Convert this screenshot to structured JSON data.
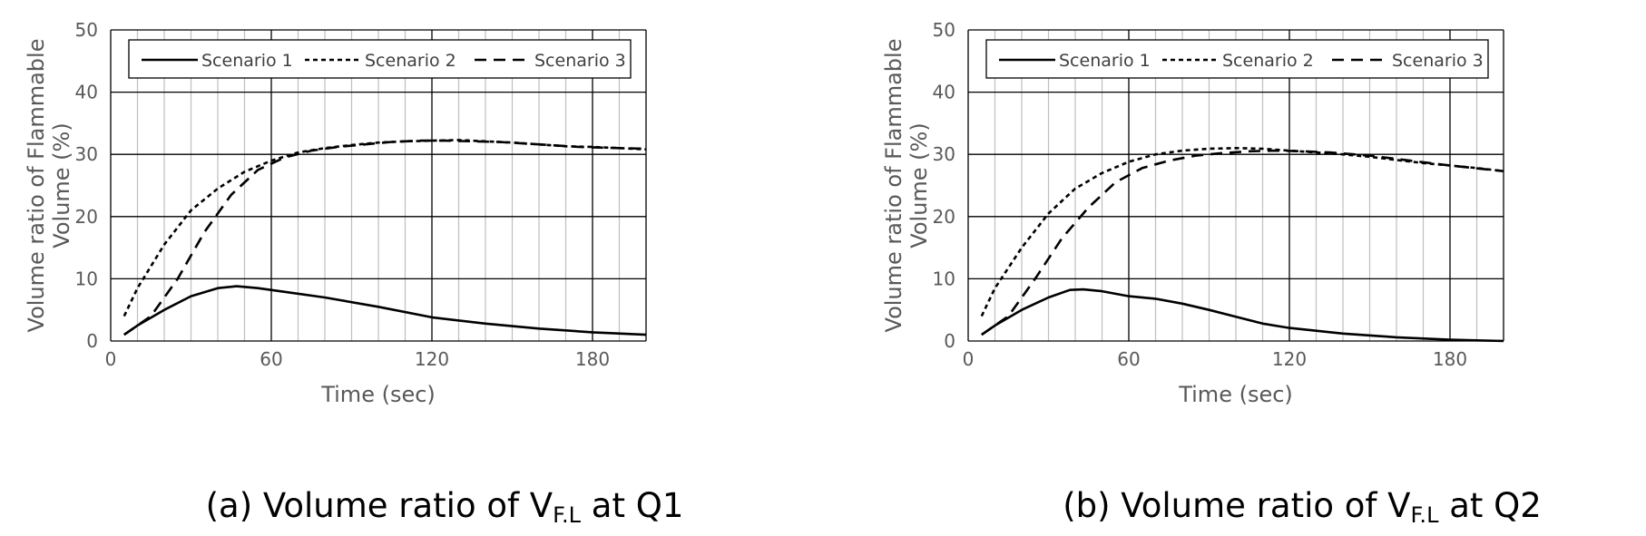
{
  "chart_data": [
    {
      "type": "line",
      "caption": {
        "prefix": "(a) Volume ratio of V",
        "sub": "F.L",
        "suffix": " at Q1"
      },
      "xlabel": "Time (sec)",
      "ylabel_line1": "Volume ratio of Flammable",
      "ylabel_line2": "Volume (%)",
      "xlim": [
        0,
        200
      ],
      "ylim": [
        0,
        50
      ],
      "xticks": [
        0,
        60,
        120,
        180
      ],
      "yticks": [
        0,
        10,
        20,
        30,
        40,
        50
      ],
      "grid": true,
      "legend_position": "top",
      "series": [
        {
          "name": "Scenario 1",
          "style": "solid",
          "x": [
            5,
            10,
            20,
            30,
            40,
            47,
            55,
            65,
            80,
            100,
            120,
            140,
            160,
            180,
            200
          ],
          "y": [
            1.0,
            2.5,
            5.0,
            7.2,
            8.5,
            8.8,
            8.5,
            7.9,
            7.0,
            5.5,
            3.8,
            2.8,
            2.0,
            1.4,
            1.0
          ]
        },
        {
          "name": "Scenario 2",
          "style": "dotted",
          "x": [
            5,
            10,
            20,
            30,
            40,
            50,
            60,
            70,
            80,
            90,
            100,
            110,
            120,
            130,
            140,
            150,
            160,
            170,
            180,
            190,
            200
          ],
          "y": [
            4.0,
            8.5,
            15.5,
            21.0,
            24.5,
            27.2,
            29.0,
            30.3,
            31.0,
            31.5,
            31.9,
            32.1,
            32.2,
            32.3,
            32.1,
            31.9,
            31.6,
            31.3,
            31.2,
            31.0,
            30.8
          ]
        },
        {
          "name": "Scenario 3",
          "style": "dashed",
          "x": [
            5,
            15,
            25,
            35,
            45,
            55,
            65,
            75,
            85,
            95,
            105,
            115,
            125,
            135,
            145,
            160,
            175,
            190,
            200
          ],
          "y": [
            1.0,
            4.0,
            10.0,
            17.5,
            23.5,
            27.5,
            29.5,
            30.6,
            31.2,
            31.6,
            32.0,
            32.2,
            32.2,
            32.1,
            32.0,
            31.6,
            31.2,
            31.0,
            30.9
          ]
        }
      ]
    },
    {
      "type": "line",
      "caption": {
        "prefix": "(b) Volume ratio of V",
        "sub": "F.L",
        "suffix": " at Q2"
      },
      "xlabel": "Time (sec)",
      "ylabel_line1": "Volume ratio of Flammable",
      "ylabel_line2": "Volume (%)",
      "xlim": [
        0,
        200
      ],
      "ylim": [
        0,
        50
      ],
      "xticks": [
        0,
        60,
        120,
        180
      ],
      "yticks": [
        0,
        10,
        20,
        30,
        40,
        50
      ],
      "grid": true,
      "legend_position": "top",
      "series": [
        {
          "name": "Scenario 1",
          "style": "solid",
          "x": [
            5,
            10,
            20,
            30,
            38,
            43,
            50,
            60,
            70,
            80,
            90,
            100,
            110,
            120,
            140,
            160,
            180,
            200
          ],
          "y": [
            1.0,
            2.5,
            5.0,
            7.0,
            8.2,
            8.3,
            8.0,
            7.2,
            6.8,
            6.0,
            5.0,
            3.9,
            2.8,
            2.1,
            1.2,
            0.6,
            0.2,
            0.0
          ]
        },
        {
          "name": "Scenario 2",
          "style": "dotted",
          "x": [
            5,
            10,
            20,
            30,
            40,
            50,
            60,
            70,
            80,
            90,
            100,
            110,
            120,
            130,
            140,
            150,
            160,
            170,
            180,
            190,
            200
          ],
          "y": [
            4.0,
            8.5,
            15.0,
            20.5,
            24.5,
            27.0,
            28.8,
            30.0,
            30.6,
            30.9,
            31.0,
            30.9,
            30.6,
            30.3,
            30.0,
            29.6,
            29.1,
            28.6,
            28.2,
            27.8,
            27.3
          ]
        },
        {
          "name": "Scenario 3",
          "style": "dashed",
          "x": [
            5,
            15,
            25,
            35,
            45,
            55,
            65,
            75,
            85,
            95,
            105,
            115,
            125,
            135,
            150,
            165,
            180,
            200
          ],
          "y": [
            1.0,
            4.0,
            10.0,
            16.5,
            21.5,
            25.5,
            27.8,
            29.0,
            29.8,
            30.2,
            30.5,
            30.6,
            30.5,
            30.3,
            29.8,
            29.0,
            28.2,
            27.3
          ]
        }
      ]
    }
  ]
}
